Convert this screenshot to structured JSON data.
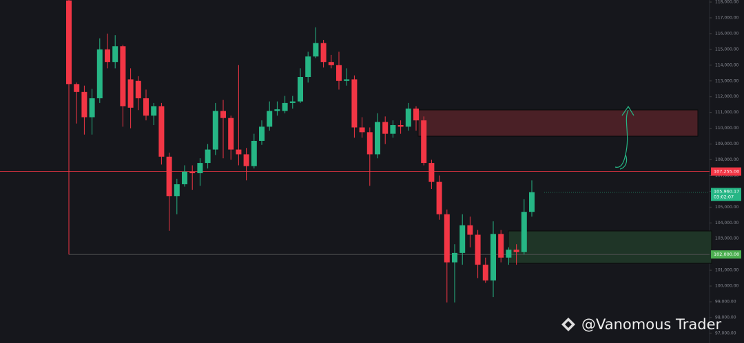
{
  "chart_data": {
    "type": "candlestick",
    "up_color": "#26b685",
    "down_color": "#f23645",
    "categories": [
      null,
      null,
      null,
      null,
      null,
      null,
      null,
      null,
      null,
      null,
      null,
      null,
      null,
      null,
      null,
      null,
      null,
      null,
      null,
      null,
      null,
      null,
      null,
      null,
      null,
      null,
      null,
      null,
      null,
      null,
      null,
      null,
      null,
      null,
      null,
      null,
      null,
      null,
      null,
      null,
      null,
      null,
      null,
      null,
      null,
      null,
      null,
      null,
      null,
      null,
      null,
      null,
      null,
      null,
      null,
      null,
      null,
      null,
      null,
      null,
      null
    ],
    "open": [
      118100,
      112800,
      112300,
      110700,
      111900,
      115000,
      114200,
      115200,
      113100,
      113000,
      111900,
      110800,
      111400,
      108200,
      105700,
      106450,
      107250,
      107150,
      107800,
      108650,
      111100,
      110650,
      108650,
      108350,
      107600,
      109200,
      110100,
      111100,
      111100,
      111600,
      111700,
      113250,
      114550,
      115400,
      114200,
      114000,
      113000,
      113100,
      110050,
      109750,
      108350,
      110400,
      109650,
      110200,
      110100,
      111250,
      110500,
      107800,
      106600,
      104550,
      101500,
      102100,
      103850,
      103250,
      101350,
      100350,
      103300,
      101800,
      102300,
      102150,
      104700
    ],
    "high": [
      118130,
      112900,
      112700,
      112500,
      115700,
      116000,
      115900,
      115300,
      113800,
      113300,
      112450,
      111600,
      111600,
      108450,
      106800,
      107650,
      107650,
      108100,
      109000,
      111600,
      111800,
      110800,
      114000,
      108750,
      109650,
      110500,
      111700,
      111700,
      112050,
      112050,
      113800,
      114850,
      116400,
      115600,
      114650,
      114850,
      113800,
      113350,
      110700,
      110050,
      110950,
      110750,
      110500,
      110500,
      111600,
      111400,
      110750,
      108000,
      107000,
      104850,
      102650,
      104550,
      104400,
      103550,
      101800,
      104100,
      103550,
      102450,
      102650,
      105500,
      106700
    ],
    "low": [
      102000,
      110300,
      109600,
      109600,
      111600,
      113800,
      113800,
      110100,
      110000,
      111150,
      110500,
      110200,
      107700,
      103500,
      104550,
      106300,
      106100,
      106350,
      107450,
      108300,
      108100,
      108000,
      107650,
      106700,
      107450,
      108950,
      109850,
      110800,
      110950,
      111250,
      111600,
      112900,
      114450,
      113850,
      113800,
      112450,
      112700,
      109400,
      109400,
      106350,
      108100,
      109000,
      109400,
      109650,
      109850,
      109850,
      107650,
      106150,
      104200,
      98950,
      98950,
      101350,
      102450,
      100500,
      100200,
      99300,
      101500,
      101350,
      101350,
      102000,
      104400
    ],
    "close": [
      112800,
      112300,
      110700,
      111900,
      115000,
      114200,
      115200,
      111400,
      111300,
      111900,
      110800,
      111400,
      108200,
      105700,
      106450,
      107250,
      107150,
      107800,
      108650,
      111100,
      110650,
      108650,
      108350,
      107600,
      109200,
      110100,
      111100,
      111200,
      111600,
      111700,
      113250,
      114550,
      115400,
      114200,
      114000,
      113000,
      113100,
      110050,
      109750,
      108350,
      110400,
      109650,
      110200,
      110100,
      111250,
      110500,
      107800,
      106600,
      104550,
      101500,
      102100,
      103850,
      103250,
      101350,
      100350,
      103300,
      101800,
      102300,
      102150,
      104700,
      105950
    ],
    "ylim": [
      96387,
      118131
    ],
    "yticks": [
      {
        "value": 97000,
        "label": "97,000.00"
      },
      {
        "value": 98000,
        "label": "98,000.00"
      },
      {
        "value": 99000,
        "label": "99,000.00"
      },
      {
        "value": 100000,
        "label": "100,000.00"
      },
      {
        "value": 101000,
        "label": "101,000.00"
      },
      {
        "value": 102000,
        "label": "102,000.00"
      },
      {
        "value": 103000,
        "label": "103,000.00"
      },
      {
        "value": 104000,
        "label": "104,000.00"
      },
      {
        "value": 105000,
        "label": "105,000.00"
      },
      {
        "value": 106000,
        "label": "106,000.00"
      },
      {
        "value": 107000,
        "label": "107,000.00"
      },
      {
        "value": 108000,
        "label": "108,000.00"
      },
      {
        "value": 109000,
        "label": "109,000.00"
      },
      {
        "value": 110000,
        "label": "110,000.00"
      },
      {
        "value": 111000,
        "label": "111,000.00"
      },
      {
        "value": 112000,
        "label": "112,000.00"
      },
      {
        "value": 113000,
        "label": "113,000.00"
      },
      {
        "value": 114000,
        "label": "114,000.00"
      },
      {
        "value": 115000,
        "label": "115,000.00"
      },
      {
        "value": 116000,
        "label": "116,000.00"
      },
      {
        "value": 117000,
        "label": "117,000.00"
      },
      {
        "value": 118000,
        "label": "118,000.00"
      }
    ],
    "zones": [
      {
        "top": 111160,
        "bottom": 109500,
        "color": "#4a2026"
      },
      {
        "top": 103490,
        "bottom": 101440,
        "color": "#1f3527"
      }
    ],
    "price_lines": [
      {
        "value": 107255,
        "label": "107,255.00",
        "color": "#f23645"
      },
      {
        "value": 102000,
        "label": "102,000.00",
        "color": "#4caf50"
      }
    ],
    "current_price": {
      "value": 105960.17,
      "label": "105,960.17",
      "countdown": "03:02:07",
      "color": "#26b685"
    },
    "watermark": "@Vanomous Trader"
  }
}
